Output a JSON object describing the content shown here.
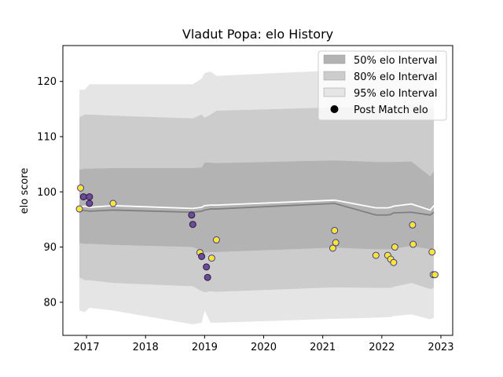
{
  "chart_data": {
    "type": "scatter",
    "title": "Vladut Popa: elo History",
    "xlabel": "",
    "ylabel": "elo score",
    "xlim": [
      2016.6,
      2023.2
    ],
    "ylim": [
      74,
      126.5
    ],
    "x_ticks": [
      2017,
      2018,
      2019,
      2020,
      2021,
      2022,
      2023
    ],
    "y_ticks": [
      80,
      90,
      100,
      110,
      120
    ],
    "grid": false,
    "legend_position": "top-right",
    "legend": [
      {
        "label": "50% elo Interval",
        "color": "#b3b3b3",
        "kind": "band"
      },
      {
        "label": "80% elo Interval",
        "color": "#cccccc",
        "kind": "band"
      },
      {
        "label": "95% elo Interval",
        "color": "#e5e5e5",
        "kind": "band"
      },
      {
        "label": "Post Match elo",
        "color": "#000000",
        "kind": "marker"
      }
    ],
    "colors": {
      "band50": "#b3b3b3",
      "band80": "#cccccc",
      "band95": "#e5e5e5",
      "mean_line": "#ffffff",
      "median_line": "#808080"
    },
    "bands": {
      "x": [
        2016.88,
        2016.97,
        2017.05,
        2017.45,
        2018.8,
        2018.95,
        2019.0,
        2019.1,
        2019.2,
        2021.2,
        2021.9,
        2022.1,
        2022.15,
        2022.2,
        2022.5,
        2022.82,
        2022.88
      ],
      "lower95": [
        78.5,
        78.2,
        79.0,
        78.5,
        76.0,
        76.3,
        78.5,
        76.3,
        76.3,
        77.0,
        77.2,
        77.3,
        77.3,
        77.5,
        77.8,
        76.9,
        77.2
      ],
      "upper95": [
        118.5,
        118.5,
        119.5,
        119.5,
        119.5,
        120.5,
        121.5,
        121.8,
        121.0,
        122.0,
        122.0,
        122.0,
        122.0,
        122.0,
        122.5,
        122.0,
        122.0
      ],
      "lower80": [
        84.5,
        84.0,
        84.0,
        83.5,
        82.9,
        82.0,
        81.8,
        82.0,
        81.9,
        82.7,
        82.6,
        82.6,
        82.6,
        82.8,
        83.5,
        82.4,
        82.6
      ],
      "upper80": [
        113.5,
        114.0,
        114.0,
        113.8,
        113.3,
        114.0,
        113.4,
        114.0,
        114.7,
        115.3,
        115.3,
        115.3,
        115.3,
        115.4,
        115.8,
        115.1,
        115.3
      ],
      "lower50": [
        90.7,
        90.6,
        90.6,
        90.4,
        90.0,
        89.3,
        89.0,
        89.1,
        89.1,
        89.9,
        89.6,
        89.6,
        89.6,
        89.7,
        90.2,
        89.6,
        89.9
      ],
      "upper50": [
        104.0,
        104.2,
        104.2,
        104.3,
        104.3,
        104.4,
        105.3,
        105.3,
        105.2,
        105.7,
        105.4,
        105.4,
        105.4,
        105.4,
        105.5,
        102.8,
        103.7
      ],
      "median": [
        96.7,
        96.6,
        96.5,
        96.7,
        96.3,
        96.5,
        96.7,
        96.9,
        96.9,
        97.9,
        95.8,
        95.8,
        95.9,
        96.2,
        96.3,
        95.8,
        96.3
      ],
      "mean": [
        97.3,
        97.4,
        97.2,
        97.5,
        97.0,
        97.2,
        97.5,
        97.6,
        97.6,
        98.5,
        97.1,
        97.1,
        97.2,
        97.4,
        97.8,
        96.7,
        97.5
      ]
    },
    "points": [
      {
        "x": 2016.88,
        "y": 96.9,
        "color": "#fde725"
      },
      {
        "x": 2016.9,
        "y": 100.7,
        "color": "#fde725"
      },
      {
        "x": 2016.95,
        "y": 99.1,
        "color": "#6b4c9a"
      },
      {
        "x": 2017.05,
        "y": 99.1,
        "color": "#6b4c9a"
      },
      {
        "x": 2017.05,
        "y": 97.9,
        "color": "#6b4c9a"
      },
      {
        "x": 2017.45,
        "y": 97.9,
        "color": "#fde725"
      },
      {
        "x": 2018.78,
        "y": 95.8,
        "color": "#6b4c9a"
      },
      {
        "x": 2018.8,
        "y": 94.1,
        "color": "#6b4c9a"
      },
      {
        "x": 2018.92,
        "y": 89.0,
        "color": "#fde725"
      },
      {
        "x": 2018.95,
        "y": 88.3,
        "color": "#6b4c9a"
      },
      {
        "x": 2019.03,
        "y": 86.4,
        "color": "#6b4c9a"
      },
      {
        "x": 2019.05,
        "y": 84.5,
        "color": "#6b4c9a"
      },
      {
        "x": 2019.12,
        "y": 88.0,
        "color": "#fde725"
      },
      {
        "x": 2019.2,
        "y": 91.3,
        "color": "#fde725"
      },
      {
        "x": 2021.17,
        "y": 89.8,
        "color": "#fde725"
      },
      {
        "x": 2021.2,
        "y": 93.0,
        "color": "#fde725"
      },
      {
        "x": 2021.22,
        "y": 90.8,
        "color": "#fde725"
      },
      {
        "x": 2021.9,
        "y": 88.5,
        "color": "#fde725"
      },
      {
        "x": 2022.1,
        "y": 88.5,
        "color": "#fde725"
      },
      {
        "x": 2022.15,
        "y": 87.8,
        "color": "#fde725"
      },
      {
        "x": 2022.2,
        "y": 87.2,
        "color": "#fde725"
      },
      {
        "x": 2022.22,
        "y": 90.0,
        "color": "#fde725"
      },
      {
        "x": 2022.52,
        "y": 94.0,
        "color": "#fde725"
      },
      {
        "x": 2022.53,
        "y": 90.5,
        "color": "#fde725"
      },
      {
        "x": 2022.85,
        "y": 89.1,
        "color": "#fde725"
      },
      {
        "x": 2022.87,
        "y": 85.0,
        "color": "#fde725"
      },
      {
        "x": 2022.9,
        "y": 85.0,
        "color": "#fde725"
      }
    ]
  }
}
